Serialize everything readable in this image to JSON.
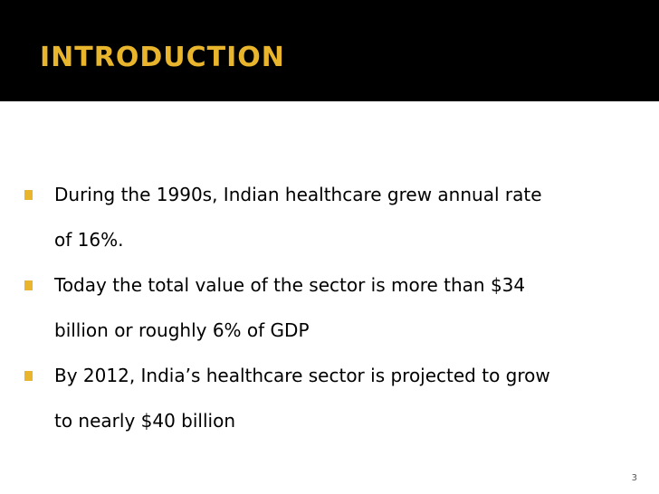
{
  "slide": {
    "title": "INTRODUCTION",
    "bullets": [
      {
        "lines": [
          "During the 1990s, Indian healthcare grew annual rate",
          "of 16%."
        ]
      },
      {
        "lines": [
          "Today the total value of the sector is more than $34",
          "billion or roughly 6% of GDP"
        ]
      },
      {
        "lines": [
          "By 2012, India’s healthcare sector is projected to grow",
          "to nearly $40 billion"
        ]
      }
    ],
    "page_number": "3"
  },
  "colors": {
    "title_band": "#000000",
    "title_text": "#e8b52c",
    "bullet_marker": "#e8b52c",
    "body_text": "#000000",
    "background": "#ffffff"
  }
}
